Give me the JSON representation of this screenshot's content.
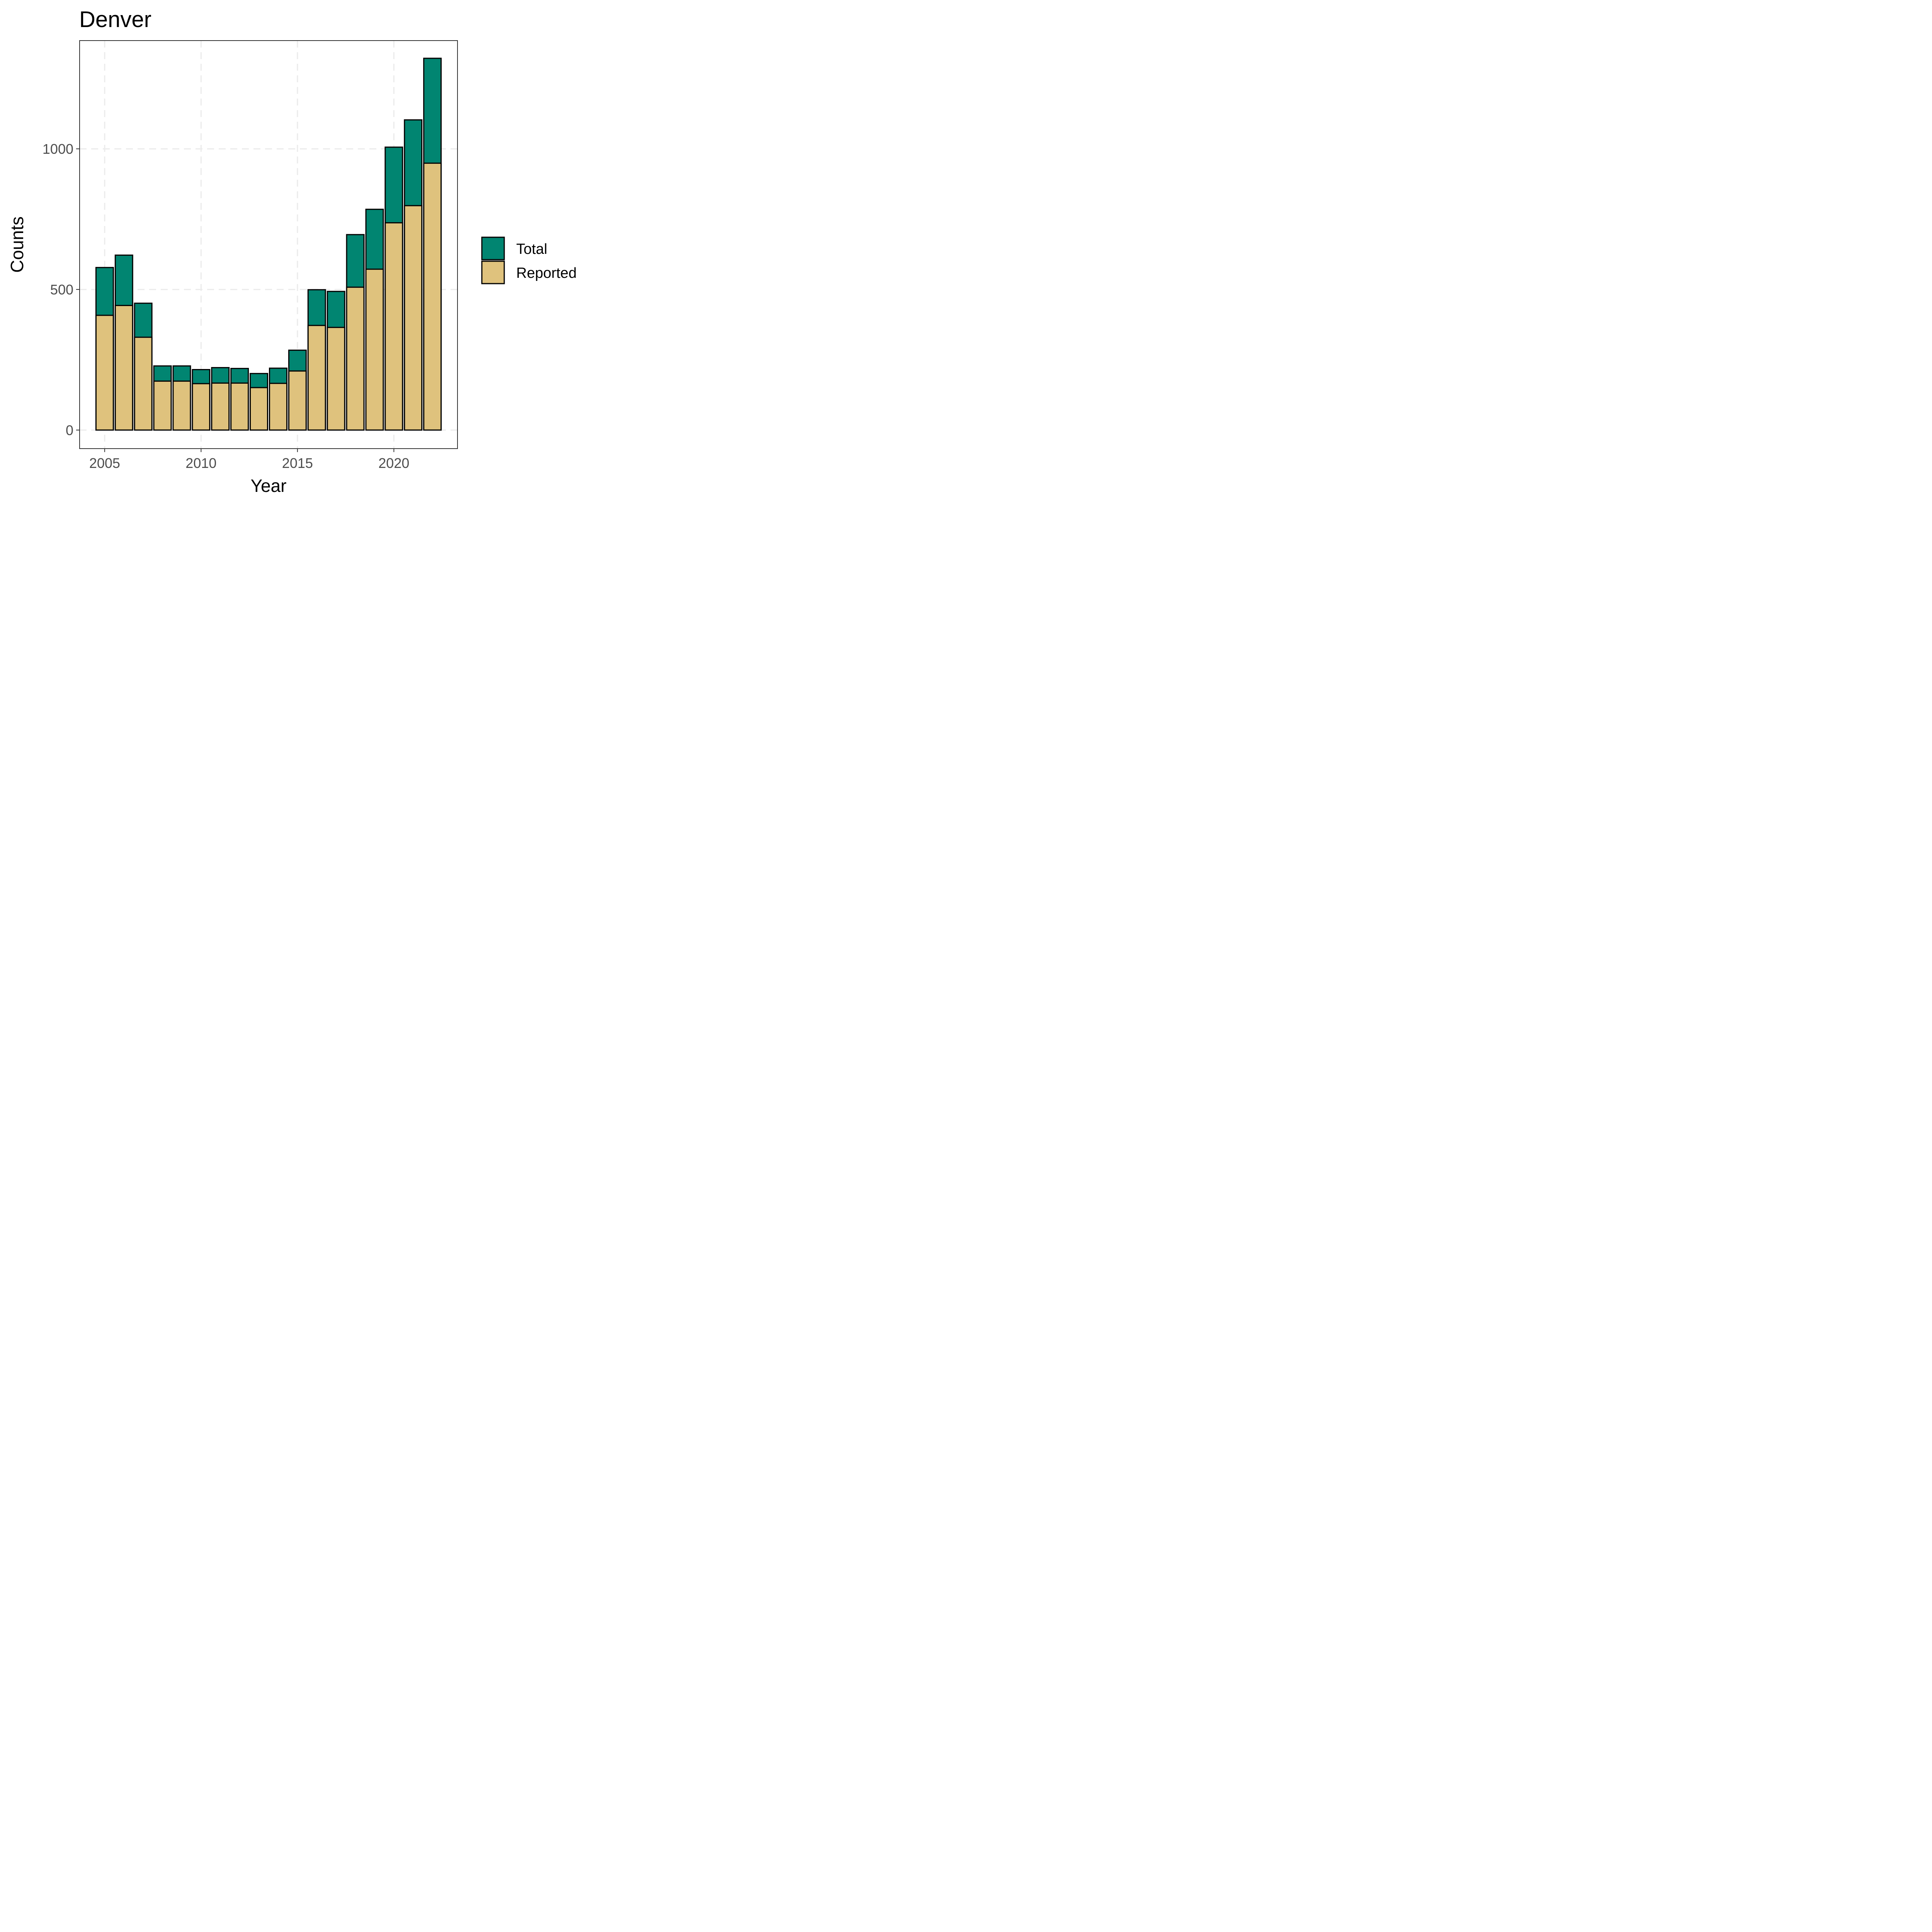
{
  "chart_data": {
    "type": "bar",
    "stacked": false,
    "title": "Denver",
    "xlabel": "Year",
    "ylabel": "Counts",
    "x": [
      2005,
      2006,
      2007,
      2008,
      2009,
      2010,
      2011,
      2012,
      2013,
      2014,
      2015,
      2016,
      2017,
      2018,
      2019,
      2020,
      2021,
      2022
    ],
    "series": [
      {
        "name": "Total",
        "color": "#018571",
        "values": [
          578,
          622,
          451,
          228,
          228,
          215,
          222,
          219,
          201,
          220,
          284,
          499,
          493,
          695,
          785,
          1006,
          1103,
          1322
        ]
      },
      {
        "name": "Reported",
        "color": "#dfc27d",
        "values": [
          408,
          443,
          330,
          174,
          174,
          165,
          167,
          167,
          151,
          166,
          210,
          372,
          365,
          508,
          572,
          737,
          798,
          949
        ]
      }
    ],
    "xticks": [
      2005,
      2010,
      2015,
      2020
    ],
    "yticks": [
      0,
      500,
      1000
    ],
    "xlim": [
      2003.7,
      2023.3
    ],
    "ylim": [
      -66,
      1385
    ],
    "grid": true,
    "legend_position": "right"
  }
}
